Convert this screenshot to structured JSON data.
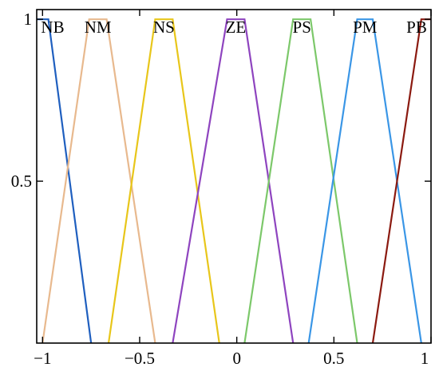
{
  "chart_data": {
    "type": "line",
    "title": "",
    "xlabel": "",
    "ylabel": "",
    "xlim": [
      -1.03,
      1.0
    ],
    "ylim": [
      0,
      1.03
    ],
    "grid": false,
    "legend": "labels above peaks",
    "x_ticks": [
      {
        "value": -1,
        "label": "−1"
      },
      {
        "value": -0.5,
        "label": "−0.5"
      },
      {
        "value": 0,
        "label": "0"
      },
      {
        "value": 0.5,
        "label": "0.5"
      },
      {
        "value": 1,
        "label": "1"
      }
    ],
    "y_ticks": [
      {
        "value": 0.5,
        "label": "0.5"
      },
      {
        "value": 1,
        "label": "1"
      }
    ],
    "series": [
      {
        "name": "NB",
        "color": "#1f5fbf",
        "x": [
          -1.03,
          -0.97,
          -0.75
        ],
        "y": [
          1,
          1,
          0
        ]
      },
      {
        "name": "NM",
        "color": "#e8b98e",
        "x": [
          -1.0,
          -0.76,
          -0.67,
          -0.42
        ],
        "y": [
          0,
          1,
          1,
          0
        ]
      },
      {
        "name": "NS",
        "color": "#e8c61a",
        "x": [
          -0.66,
          -0.42,
          -0.33,
          -0.09
        ],
        "y": [
          0,
          1,
          1,
          0
        ]
      },
      {
        "name": "ZE",
        "color": "#8e44bf",
        "x": [
          -0.33,
          -0.05,
          0.04,
          0.29
        ],
        "y": [
          0,
          1,
          1,
          0
        ]
      },
      {
        "name": "PS",
        "color": "#7cc86a",
        "x": [
          0.04,
          0.29,
          0.38,
          0.62
        ],
        "y": [
          0,
          1,
          1,
          0
        ]
      },
      {
        "name": "PM",
        "color": "#3a96e6",
        "x": [
          0.37,
          0.62,
          0.7,
          0.95
        ],
        "y": [
          0,
          1,
          1,
          0
        ]
      },
      {
        "name": "PB",
        "color": "#8b1a10",
        "x": [
          0.7,
          0.95,
          1.0
        ],
        "y": [
          0,
          1,
          1
        ]
      }
    ]
  }
}
